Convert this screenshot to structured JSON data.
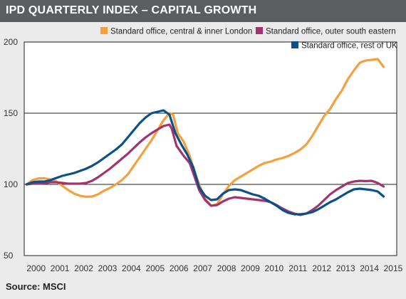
{
  "header": {
    "title": "IPD QUARTERLY INDEX – CAPITAL GROWTH"
  },
  "footer": {
    "source": "Source: MSCI"
  },
  "chart_data": {
    "type": "line",
    "title": "IPD QUARTERLY INDEX – CAPITAL GROWTH",
    "xlabel": "",
    "ylabel": "",
    "xlim": [
      1999.9,
      2015.55
    ],
    "ylim": [
      50,
      200
    ],
    "yticks": [
      50,
      100,
      150,
      200
    ],
    "xticks": [
      "2000",
      "2001",
      "2002",
      "2003",
      "2004",
      "2005",
      "2006",
      "2007",
      "2008",
      "2009",
      "2010",
      "2011",
      "2012",
      "2013",
      "2014",
      "2015"
    ],
    "grid": "horizontal",
    "legend_position": "top-right",
    "series": [
      {
        "name": "Standard office, central & inner London",
        "color": "#f5a03c",
        "points": [
          [
            2000.0,
            100
          ],
          [
            2000.25,
            103
          ],
          [
            2000.5,
            104.2
          ],
          [
            2000.75,
            104.3
          ],
          [
            2001.0,
            103.5
          ],
          [
            2001.25,
            102
          ],
          [
            2001.5,
            99
          ],
          [
            2001.75,
            96
          ],
          [
            2002.0,
            93.5
          ],
          [
            2002.25,
            92
          ],
          [
            2002.5,
            91.3
          ],
          [
            2002.75,
            91.5
          ],
          [
            2003.0,
            93
          ],
          [
            2003.25,
            95.5
          ],
          [
            2003.5,
            97.5
          ],
          [
            2003.75,
            100
          ],
          [
            2004.0,
            103
          ],
          [
            2004.25,
            107
          ],
          [
            2004.5,
            113
          ],
          [
            2004.75,
            119
          ],
          [
            2005.0,
            125
          ],
          [
            2005.25,
            131
          ],
          [
            2005.5,
            138
          ],
          [
            2005.75,
            145
          ],
          [
            2006.0,
            150
          ],
          [
            2006.15,
            149
          ],
          [
            2006.35,
            136
          ],
          [
            2006.6,
            130
          ],
          [
            2006.85,
            120
          ],
          [
            2007.0,
            112
          ],
          [
            2007.25,
            100
          ],
          [
            2007.5,
            90
          ],
          [
            2007.75,
            85
          ],
          [
            2008.0,
            86
          ],
          [
            2008.25,
            93
          ],
          [
            2008.5,
            99
          ],
          [
            2008.75,
            103
          ],
          [
            2009.0,
            105.5
          ],
          [
            2009.25,
            108
          ],
          [
            2009.5,
            110.5
          ],
          [
            2009.75,
            113
          ],
          [
            2010.0,
            115
          ],
          [
            2010.25,
            116
          ],
          [
            2010.5,
            117.5
          ],
          [
            2010.75,
            118.5
          ],
          [
            2011.0,
            120
          ],
          [
            2011.25,
            122
          ],
          [
            2011.5,
            124.5
          ],
          [
            2011.75,
            128
          ],
          [
            2012.0,
            134
          ],
          [
            2012.25,
            141
          ],
          [
            2012.5,
            148
          ],
          [
            2012.75,
            153
          ],
          [
            2013.0,
            160
          ],
          [
            2013.25,
            166
          ],
          [
            2013.5,
            174
          ],
          [
            2013.75,
            180
          ],
          [
            2014.0,
            185.5
          ],
          [
            2014.25,
            187
          ],
          [
            2014.5,
            187.5
          ],
          [
            2014.75,
            188
          ],
          [
            2015.0,
            182.5
          ]
        ]
      },
      {
        "name": "Standard office, outer south eastern",
        "color": "#a2336e",
        "points": [
          [
            2000.0,
            100
          ],
          [
            2000.25,
            100.5
          ],
          [
            2000.5,
            100.5
          ],
          [
            2000.75,
            100.8
          ],
          [
            2001.0,
            101.5
          ],
          [
            2001.25,
            101.5
          ],
          [
            2001.5,
            101
          ],
          [
            2001.75,
            100.5
          ],
          [
            2002.0,
            100.5
          ],
          [
            2002.25,
            100.5
          ],
          [
            2002.5,
            101
          ],
          [
            2002.75,
            102.5
          ],
          [
            2003.0,
            105
          ],
          [
            2003.25,
            108
          ],
          [
            2003.5,
            111
          ],
          [
            2003.75,
            114.5
          ],
          [
            2004.0,
            118
          ],
          [
            2004.25,
            121.5
          ],
          [
            2004.5,
            125.5
          ],
          [
            2004.75,
            129.5
          ],
          [
            2005.0,
            133
          ],
          [
            2005.25,
            136
          ],
          [
            2005.5,
            138.5
          ],
          [
            2005.75,
            141
          ],
          [
            2006.0,
            142
          ],
          [
            2006.1,
            139
          ],
          [
            2006.3,
            127
          ],
          [
            2006.6,
            120
          ],
          [
            2006.85,
            115
          ],
          [
            2007.0,
            108
          ],
          [
            2007.25,
            96
          ],
          [
            2007.5,
            89
          ],
          [
            2007.75,
            85
          ],
          [
            2008.0,
            85.5
          ],
          [
            2008.25,
            88
          ],
          [
            2008.5,
            90
          ],
          [
            2008.75,
            91
          ],
          [
            2009.0,
            90.5
          ],
          [
            2009.25,
            90
          ],
          [
            2009.5,
            89.5
          ],
          [
            2009.75,
            89
          ],
          [
            2010.0,
            88.5
          ],
          [
            2010.25,
            87.5
          ],
          [
            2010.5,
            85.5
          ],
          [
            2010.75,
            83
          ],
          [
            2011.0,
            81
          ],
          [
            2011.25,
            79.5
          ],
          [
            2011.5,
            78.5
          ],
          [
            2011.75,
            79.5
          ],
          [
            2012.0,
            82
          ],
          [
            2012.25,
            85
          ],
          [
            2012.5,
            89
          ],
          [
            2012.75,
            93
          ],
          [
            2013.0,
            96
          ],
          [
            2013.25,
            98.5
          ],
          [
            2013.5,
            101
          ],
          [
            2013.75,
            102
          ],
          [
            2014.0,
            102.5
          ],
          [
            2014.25,
            102.3
          ],
          [
            2014.5,
            102.5
          ],
          [
            2014.75,
            101
          ],
          [
            2015.0,
            98.5
          ]
        ]
      },
      {
        "name": "Standard office, rest of UK",
        "color": "#0b5189",
        "points": [
          [
            2000.0,
            100
          ],
          [
            2000.25,
            101.5
          ],
          [
            2000.5,
            102
          ],
          [
            2000.75,
            102
          ],
          [
            2001.0,
            103
          ],
          [
            2001.25,
            104.5
          ],
          [
            2001.5,
            106
          ],
          [
            2001.75,
            107
          ],
          [
            2002.0,
            108
          ],
          [
            2002.25,
            109.5
          ],
          [
            2002.5,
            111
          ],
          [
            2002.75,
            113
          ],
          [
            2003.0,
            115.5
          ],
          [
            2003.25,
            118.5
          ],
          [
            2003.5,
            121.5
          ],
          [
            2003.75,
            124.5
          ],
          [
            2004.0,
            128
          ],
          [
            2004.25,
            133
          ],
          [
            2004.5,
            138
          ],
          [
            2004.75,
            143
          ],
          [
            2005.0,
            147
          ],
          [
            2005.25,
            150
          ],
          [
            2005.5,
            151
          ],
          [
            2005.75,
            152
          ],
          [
            2006.0,
            149
          ],
          [
            2006.25,
            136
          ],
          [
            2006.5,
            128
          ],
          [
            2006.75,
            121
          ],
          [
            2007.0,
            112
          ],
          [
            2007.25,
            98
          ],
          [
            2007.5,
            92
          ],
          [
            2007.75,
            89
          ],
          [
            2008.0,
            89.5
          ],
          [
            2008.25,
            93.5
          ],
          [
            2008.5,
            96
          ],
          [
            2008.75,
            96.5
          ],
          [
            2009.0,
            96
          ],
          [
            2009.25,
            94.5
          ],
          [
            2009.5,
            93
          ],
          [
            2009.75,
            92
          ],
          [
            2010.0,
            90
          ],
          [
            2010.25,
            87.5
          ],
          [
            2010.5,
            85
          ],
          [
            2010.75,
            82
          ],
          [
            2011.0,
            80
          ],
          [
            2011.25,
            79
          ],
          [
            2011.5,
            79
          ],
          [
            2011.75,
            79.5
          ],
          [
            2012.0,
            80.5
          ],
          [
            2012.25,
            82.5
          ],
          [
            2012.5,
            85
          ],
          [
            2012.75,
            87.5
          ],
          [
            2013.0,
            89.5
          ],
          [
            2013.25,
            92
          ],
          [
            2013.5,
            94.5
          ],
          [
            2013.75,
            96.5
          ],
          [
            2014.0,
            97
          ],
          [
            2014.25,
            96.5
          ],
          [
            2014.5,
            96
          ],
          [
            2014.75,
            95
          ],
          [
            2015.0,
            91.5
          ]
        ]
      }
    ]
  }
}
